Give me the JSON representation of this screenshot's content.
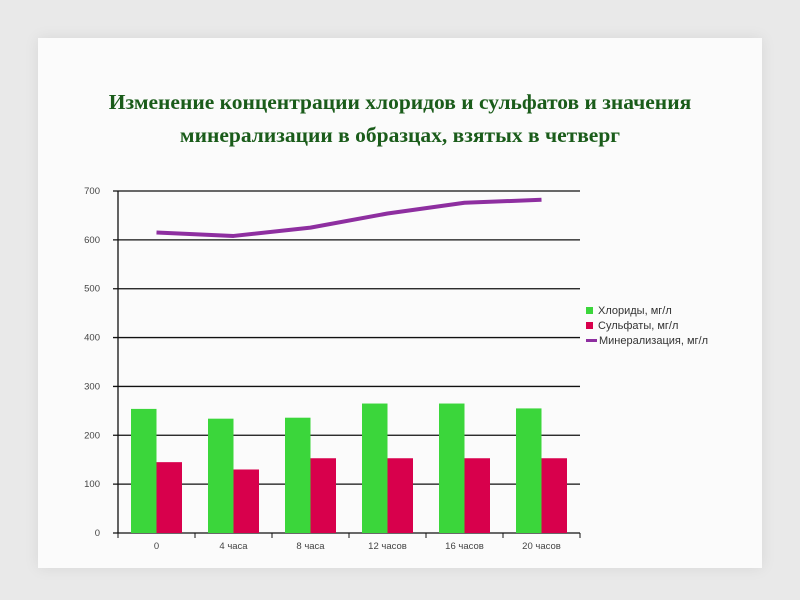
{
  "chart_data": {
    "type": "bar",
    "title_line1": "Изменение концентрации хлоридов и сульфатов и значения",
    "title_line2": "минерализации в образцах, взятых в четверг",
    "categories": [
      "0",
      "4 часа",
      "8 часа",
      "12 часов",
      "16 часов",
      "20 часов"
    ],
    "ylim": [
      0,
      700
    ],
    "yticks": [
      "0",
      "100",
      "200",
      "300",
      "400",
      "500",
      "600",
      "700"
    ],
    "grid": true,
    "legend_position": "right",
    "series": [
      {
        "name": "Хлориды, мг/л",
        "type": "bar",
        "color": "#3bd63b",
        "values": [
          254,
          234,
          236,
          265,
          265,
          255
        ]
      },
      {
        "name": "Сульфаты, мг/л",
        "type": "bar",
        "color": "#d8004c",
        "values": [
          145,
          130,
          153,
          153,
          153,
          153
        ]
      },
      {
        "name": "Минерализация, мг/л",
        "type": "line",
        "color": "#8e2fa0",
        "values": [
          615,
          608,
          625,
          654,
          676,
          682
        ]
      }
    ]
  }
}
